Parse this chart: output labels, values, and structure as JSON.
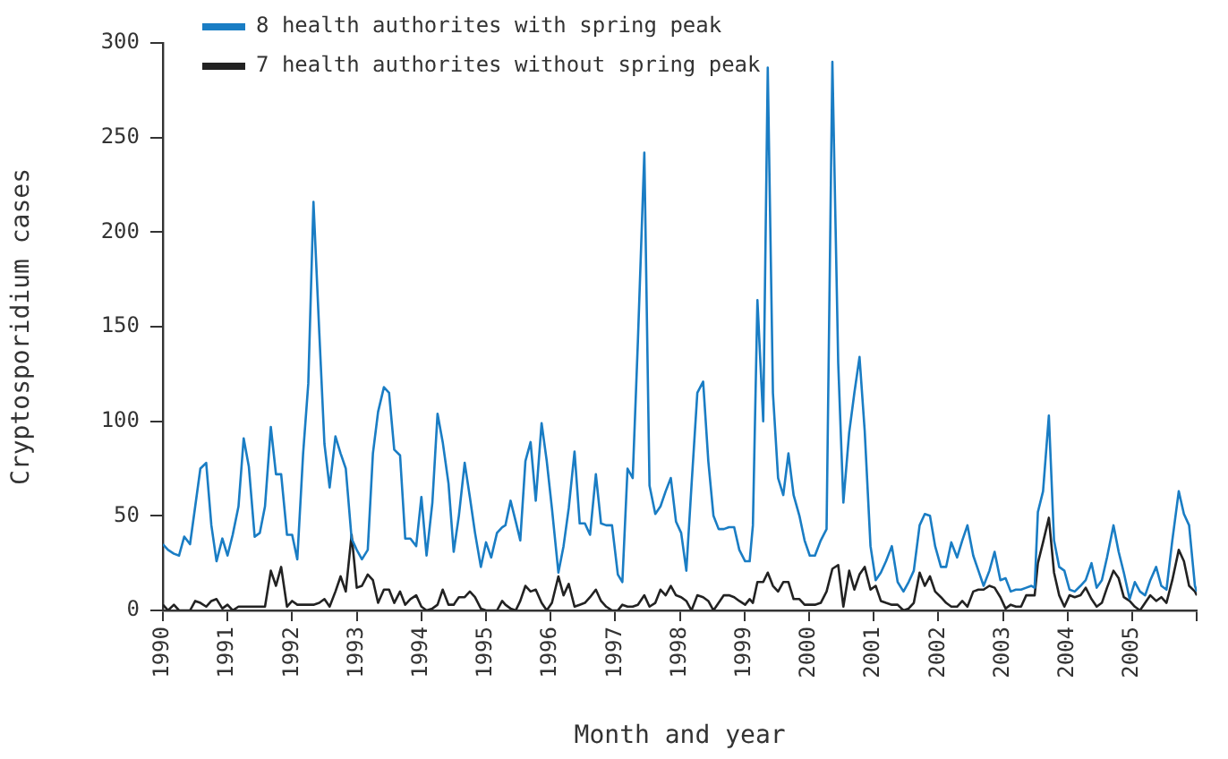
{
  "chart_data": {
    "type": "line",
    "xlabel": "Month and year",
    "ylabel": "Cryptosporidium cases",
    "legend": "top left",
    "grid": false,
    "marker": "none",
    "line_style": "solid",
    "xlim": [
      1990,
      2006
    ],
    "ylim": [
      0,
      300
    ],
    "xticks": [
      1990,
      1991,
      1992,
      1993,
      1994,
      1995,
      1996,
      1997,
      1998,
      1999,
      2000,
      2001,
      2002,
      2003,
      2004,
      2005,
      {
        "value": 2006,
        "label": null
      }
    ],
    "yticks": [
      0,
      50,
      100,
      150,
      200,
      250,
      300
    ],
    "x": [
      1990,
      1990.08,
      1990.17,
      1990.25,
      1990.33,
      1990.42,
      1990.5,
      1990.58,
      1990.67,
      1990.75,
      1990.83,
      1990.92,
      1991,
      1991.08,
      1991.17,
      1991.25,
      1991.33,
      1991.42,
      1991.5,
      1991.58,
      1991.67,
      1991.75,
      1991.83,
      1991.92,
      1992,
      1992.08,
      1992.17,
      1992.25,
      1992.33,
      1992.42,
      1992.5,
      1992.58,
      1992.67,
      1992.75,
      1992.83,
      1992.92,
      1993,
      1993.08,
      1993.17,
      1993.25,
      1993.33,
      1993.42,
      1993.5,
      1993.58,
      1993.67,
      1993.75,
      1993.83,
      1993.92,
      1994,
      1994.08,
      1994.17,
      1994.25,
      1994.33,
      1994.42,
      1994.5,
      1994.58,
      1994.67,
      1994.75,
      1994.83,
      1994.92,
      1995,
      1995.08,
      1995.17,
      1995.25,
      1995.3,
      1995.38,
      1995.46,
      1995.53,
      1995.61,
      1995.69,
      1995.77,
      1995.86,
      1995.94,
      1996.02,
      1996.12,
      1996.2,
      1996.28,
      1996.37,
      1996.45,
      1996.53,
      1996.61,
      1996.7,
      1996.78,
      1996.86,
      1996.95,
      1997.04,
      1997.11,
      1997.19,
      1997.27,
      1997.35,
      1997.45,
      1997.53,
      1997.62,
      1997.7,
      1997.78,
      1997.86,
      1997.94,
      1998.02,
      1998.1,
      1998.18,
      1998.27,
      1998.36,
      1998.44,
      1998.52,
      1998.6,
      1998.68,
      1998.76,
      1998.84,
      1998.92,
      1999.01,
      1999.08,
      1999.13,
      1999.2,
      1999.29,
      1999.36,
      1999.44,
      1999.52,
      1999.6,
      1999.68,
      1999.76,
      1999.85,
      1999.93,
      2000.01,
      2000.09,
      2000.18,
      2000.27,
      2000.36,
      2000.45,
      2000.53,
      2000.62,
      2000.7,
      2000.78,
      2000.86,
      2000.95,
      2001.03,
      2001.11,
      2001.19,
      2001.28,
      2001.37,
      2001.46,
      2001.54,
      2001.62,
      2001.71,
      2001.79,
      2001.87,
      2001.95,
      2002.04,
      2002.12,
      2002.2,
      2002.29,
      2002.37,
      2002.45,
      2002.54,
      2002.62,
      2002.7,
      2002.79,
      2002.87,
      2002.96,
      2003.04,
      2003.12,
      2003.2,
      2003.28,
      2003.36,
      2003.44,
      2003.49,
      2003.54,
      2003.62,
      2003.71,
      2003.79,
      2003.87,
      2003.95,
      2004.03,
      2004.11,
      2004.2,
      2004.28,
      2004.37,
      2004.45,
      2004.53,
      2004.61,
      2004.71,
      2004.79,
      2004.87,
      2004.96,
      2005.04,
      2005.12,
      2005.2,
      2005.28,
      2005.37,
      2005.45,
      2005.53,
      2005.62,
      2005.72,
      2005.8,
      2005.88,
      2005.97,
      2006
    ],
    "series": [
      {
        "name": "8 health authorites with spring peak",
        "color": "#1a7dc4",
        "values": [
          35,
          32,
          30,
          29,
          39,
          35,
          55,
          75,
          78,
          45,
          26,
          38,
          29,
          40,
          55,
          91,
          76,
          39,
          41,
          55,
          97,
          72,
          72,
          40,
          40,
          27,
          83,
          120,
          216,
          147,
          88,
          65,
          92,
          83,
          75,
          38,
          32,
          27,
          32,
          83,
          105,
          118,
          115,
          85,
          82,
          38,
          38,
          34,
          60,
          29,
          57,
          104,
          89,
          67,
          31,
          50,
          78,
          60,
          41,
          23,
          36,
          28,
          41,
          44,
          45,
          58,
          47,
          37,
          79,
          89,
          58,
          99,
          79,
          54,
          20,
          34,
          54,
          84,
          46,
          46,
          40,
          72,
          46,
          45,
          45,
          19,
          15,
          75,
          70,
          142,
          242,
          66,
          51,
          55,
          63,
          70,
          47,
          41,
          21,
          66,
          115,
          121,
          79,
          50,
          43,
          43,
          44,
          44,
          32,
          26,
          26,
          45,
          164,
          100,
          287,
          115,
          70,
          61,
          83,
          61,
          50,
          37,
          29,
          29,
          37,
          43,
          290,
          131,
          57,
          94,
          115,
          134,
          95,
          34,
          16,
          20,
          26,
          34,
          15,
          10,
          15,
          21,
          45,
          51,
          50,
          34,
          23,
          23,
          36,
          28,
          37,
          45,
          29,
          21,
          13,
          21,
          31,
          16,
          17,
          10,
          11,
          11,
          12,
          13,
          12,
          52,
          63,
          103,
          37,
          23,
          21,
          11,
          10,
          13,
          16,
          25,
          12,
          16,
          28,
          45,
          31,
          20,
          6,
          15,
          10,
          8,
          16,
          23,
          13,
          11,
          37,
          63,
          51,
          45,
          13,
          10
        ]
      },
      {
        "name": "7 health authorites without spring peak",
        "color": "#222222",
        "values": [
          3,
          0,
          3,
          0,
          0,
          0,
          5,
          4,
          2,
          5,
          6,
          1,
          3,
          0,
          2,
          2,
          2,
          2,
          2,
          2,
          21,
          13,
          23,
          2,
          5,
          3,
          3,
          3,
          3,
          4,
          6,
          2,
          10,
          18,
          10,
          40,
          12,
          13,
          19,
          16,
          4,
          11,
          11,
          4,
          10,
          3,
          6,
          8,
          2,
          0,
          1,
          3,
          11,
          3,
          3,
          7,
          7,
          10,
          7,
          1,
          0,
          0,
          0,
          5,
          3,
          1,
          0,
          5,
          13,
          10,
          11,
          4,
          0,
          4,
          18,
          8,
          14,
          2,
          3,
          4,
          7,
          11,
          5,
          2,
          0,
          0,
          3,
          2,
          2,
          3,
          8,
          2,
          4,
          11,
          8,
          13,
          8,
          7,
          5,
          0,
          8,
          7,
          5,
          0,
          4,
          8,
          8,
          7,
          5,
          3,
          6,
          4,
          15,
          15,
          20,
          13,
          10,
          15,
          15,
          6,
          6,
          3,
          3,
          3,
          4,
          10,
          22,
          24,
          2,
          21,
          11,
          19,
          23,
          11,
          13,
          5,
          4,
          3,
          3,
          0,
          1,
          4,
          20,
          13,
          18,
          10,
          7,
          4,
          2,
          2,
          5,
          2,
          10,
          11,
          11,
          13,
          12,
          7,
          1,
          3,
          2,
          2,
          8,
          8,
          8,
          25,
          36,
          49,
          20,
          8,
          2,
          8,
          7,
          8,
          12,
          6,
          2,
          4,
          12,
          21,
          17,
          7,
          5,
          2,
          0,
          4,
          8,
          5,
          7,
          4,
          16,
          32,
          26,
          13,
          10,
          8
        ]
      }
    ]
  }
}
